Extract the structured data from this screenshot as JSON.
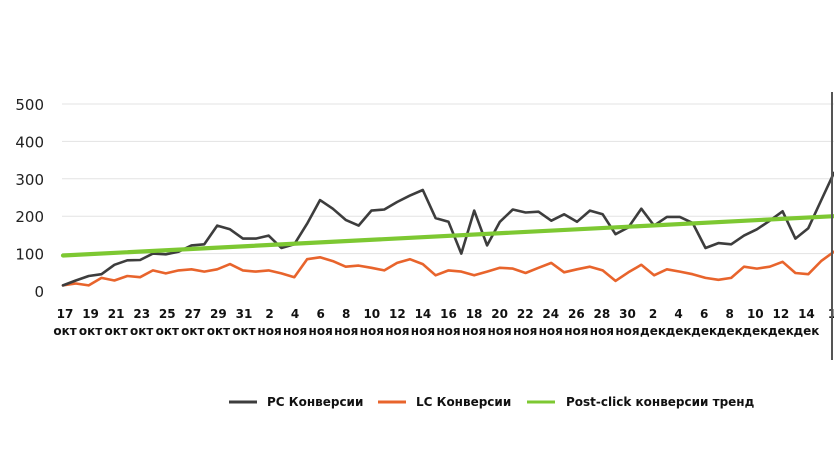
{
  "chart_data": {
    "type": "line",
    "title": "",
    "xlabel": "",
    "ylabel": "",
    "ylim": [
      0,
      500
    ],
    "y_ticks": [
      "0",
      "100",
      "200",
      "300",
      "400",
      "500"
    ],
    "grid": "horizontal",
    "legend_position": "bottom",
    "x_tick_labels": [
      [
        "17",
        "окт"
      ],
      [
        "19",
        "окт"
      ],
      [
        "21",
        "окт"
      ],
      [
        "23",
        "окт"
      ],
      [
        "25",
        "окт"
      ],
      [
        "27",
        "окт"
      ],
      [
        "29",
        "окт"
      ],
      [
        "31",
        "окт"
      ],
      [
        "2",
        "ноя"
      ],
      [
        "4",
        "ноя"
      ],
      [
        "6",
        "ноя"
      ],
      [
        "8",
        "ноя"
      ],
      [
        "10",
        "ноя"
      ],
      [
        "12",
        "ноя"
      ],
      [
        "14",
        "ноя"
      ],
      [
        "16",
        "ноя"
      ],
      [
        "18",
        "ноя"
      ],
      [
        "20",
        "ноя"
      ],
      [
        "22",
        "ноя"
      ],
      [
        "24",
        "ноя"
      ],
      [
        "26",
        "ноя"
      ],
      [
        "28",
        "ноя"
      ],
      [
        "30",
        "ноя"
      ],
      [
        "2",
        "дек"
      ],
      [
        "4",
        "дек"
      ],
      [
        "6",
        "дек"
      ],
      [
        "8",
        "дек"
      ],
      [
        "10",
        "дек"
      ],
      [
        "12",
        "дек"
      ],
      [
        "14",
        "дек"
      ],
      [
        "1",
        ""
      ]
    ],
    "series": [
      {
        "name": "PC Конверсии",
        "color": "#3d3d3d",
        "values": [
          15,
          28,
          40,
          45,
          70,
          82,
          83,
          100,
          98,
          105,
          122,
          125,
          175,
          165,
          140,
          140,
          148,
          115,
          125,
          180,
          243,
          220,
          190,
          175,
          215,
          218,
          238,
          255,
          270,
          195,
          185,
          100,
          215,
          122,
          185,
          218,
          210,
          212,
          188,
          205,
          185,
          215,
          205,
          152,
          170,
          220,
          175,
          198,
          198,
          182,
          115,
          128,
          125,
          148,
          165,
          188,
          213,
          140,
          168,
          242,
          316
        ]
      },
      {
        "name": "LC Конверсии",
        "color": "#e8642c",
        "values": [
          15,
          20,
          15,
          35,
          28,
          40,
          37,
          55,
          47,
          55,
          58,
          52,
          58,
          72,
          55,
          52,
          55,
          47,
          37,
          85,
          90,
          80,
          65,
          68,
          62,
          55,
          75,
          85,
          72,
          42,
          55,
          52,
          42,
          52,
          62,
          60,
          48,
          62,
          75,
          50,
          58,
          65,
          55,
          27,
          50,
          70,
          42,
          58,
          52,
          45,
          35,
          30,
          35,
          65,
          60,
          65,
          78,
          48,
          45,
          80,
          105
        ]
      },
      {
        "name": "Post-click конверсии тренд",
        "color": "#7dc832",
        "values": [
          95,
          200
        ]
      }
    ]
  }
}
